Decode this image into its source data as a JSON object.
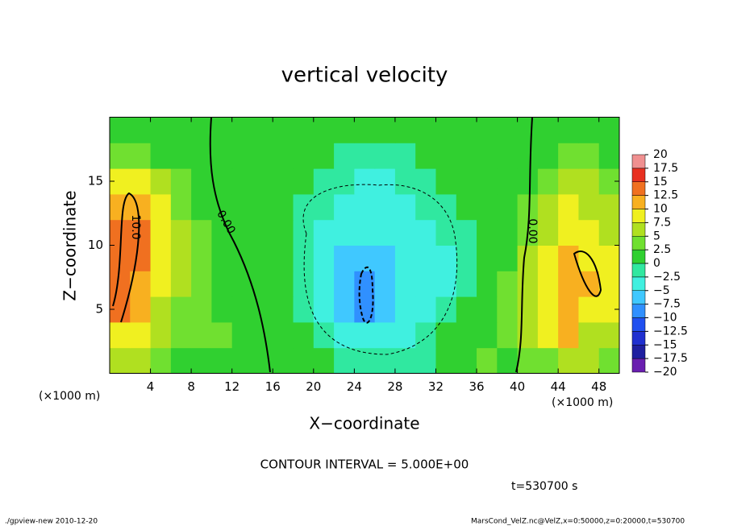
{
  "chart_data": {
    "type": "heatmap",
    "title": "vertical velocity",
    "x_label": "X−coordinate",
    "y_label": "Z−coordinate",
    "x_unit": "(×1000 m)",
    "xlim": [
      0,
      50
    ],
    "ylim": [
      0,
      20
    ],
    "xticks": [
      4,
      8,
      12,
      16,
      20,
      24,
      28,
      32,
      36,
      40,
      44,
      48
    ],
    "yticks": [
      5,
      10,
      15
    ],
    "x": [
      1,
      3,
      5,
      7,
      9,
      11,
      13,
      15,
      17,
      19,
      21,
      23,
      25,
      27,
      29,
      31,
      33,
      35,
      37,
      39,
      41,
      43,
      45,
      47,
      49
    ],
    "y": [
      1,
      3,
      5,
      7,
      9,
      11,
      13,
      15,
      17,
      19
    ],
    "values": [
      [
        6,
        5,
        3,
        2,
        2,
        2,
        2,
        1,
        1,
        1,
        0,
        -1,
        -2,
        -2,
        -2,
        -1,
        0,
        2,
        3,
        2,
        3,
        4,
        6,
        5,
        4
      ],
      [
        9,
        8,
        5,
        3,
        3,
        3,
        2,
        2,
        1,
        1,
        -2,
        -3,
        -5,
        -4,
        -3,
        -2,
        0,
        1,
        2,
        3,
        5,
        8,
        10,
        7,
        6
      ],
      [
        13,
        10,
        6,
        4,
        3,
        2,
        2,
        2,
        1,
        -2,
        -4,
        -6,
        -9,
        -6,
        -4,
        -3,
        -2,
        0,
        1,
        3,
        6,
        8,
        11,
        9,
        8
      ],
      [
        14,
        12,
        8,
        5,
        3,
        2,
        2,
        1,
        1,
        -2,
        -4,
        -6,
        -10,
        -7,
        -5,
        -4,
        -3,
        -1,
        1,
        3,
        6,
        9,
        12,
        10,
        9
      ],
      [
        14,
        13,
        9,
        6,
        3,
        2,
        1,
        1,
        0,
        -2,
        -4,
        -6,
        -7,
        -6,
        -5,
        -4,
        -3,
        -1,
        1,
        2,
        5,
        8,
        10,
        9,
        8
      ],
      [
        13,
        13,
        9,
        5,
        3,
        2,
        1,
        0,
        0,
        -1,
        -3,
        -4,
        -5,
        -5,
        -4,
        -3,
        -2,
        -1,
        0,
        2,
        4,
        7,
        9,
        8,
        7
      ],
      [
        11,
        12,
        8,
        4,
        2,
        1,
        1,
        0,
        0,
        -1,
        -2,
        -4,
        -4,
        -4,
        -3,
        -2,
        -1,
        0,
        0,
        1,
        3,
        6,
        8,
        7,
        6
      ],
      [
        8,
        9,
        6,
        3,
        2,
        1,
        1,
        0,
        0,
        0,
        -1,
        -2,
        -3,
        -3,
        -2,
        -1,
        0,
        0,
        0,
        1,
        2,
        4,
        6,
        5,
        4
      ],
      [
        4,
        3,
        2,
        2,
        1,
        1,
        1,
        0,
        0,
        1,
        0,
        -1,
        -1,
        -1,
        -1,
        0,
        0,
        0,
        0,
        1,
        1,
        2,
        3,
        3,
        2
      ],
      [
        2,
        2,
        1,
        1,
        1,
        1,
        0,
        0,
        0,
        1,
        0,
        0,
        0,
        0,
        0,
        0,
        0,
        0,
        0,
        1,
        1,
        1,
        1,
        1,
        1
      ]
    ],
    "colorbar": {
      "lim": [
        -20,
        20
      ],
      "ticks": [
        {
          "value": -20,
          "label": "−20"
        },
        {
          "value": -17.5,
          "label": "−17.5"
        },
        {
          "value": -15,
          "label": "−15"
        },
        {
          "value": -12.5,
          "label": "−12.5"
        },
        {
          "value": -10,
          "label": "−10"
        },
        {
          "value": -7.5,
          "label": "−7.5"
        },
        {
          "value": -5,
          "label": "−5"
        },
        {
          "value": -2.5,
          "label": "−2.5"
        },
        0,
        2.5,
        5,
        7.5,
        10,
        12.5,
        15,
        17.5,
        20
      ],
      "colors": [
        "#6a1fb0",
        "#1f1fa0",
        "#2030d0",
        "#2050f0",
        "#3090ff",
        "#40c8ff",
        "#40f0e0",
        "#30e8a0",
        "#30d030",
        "#70e030",
        "#b0e020",
        "#f0f020",
        "#f8b020",
        "#f07020",
        "#e83020",
        "#f09090"
      ]
    },
    "contour_labels": [
      "10.0",
      "0.00",
      "0.00"
    ],
    "contour_interval": "CONTOUR INTERVAL = 5.000E+00",
    "time": "t=530700 s",
    "footer_left": "./gpview-new  2010-12-20",
    "footer_right": "MarsCond_VelZ.nc@VelZ,x=0:50000,z=0:20000,t=530700"
  }
}
